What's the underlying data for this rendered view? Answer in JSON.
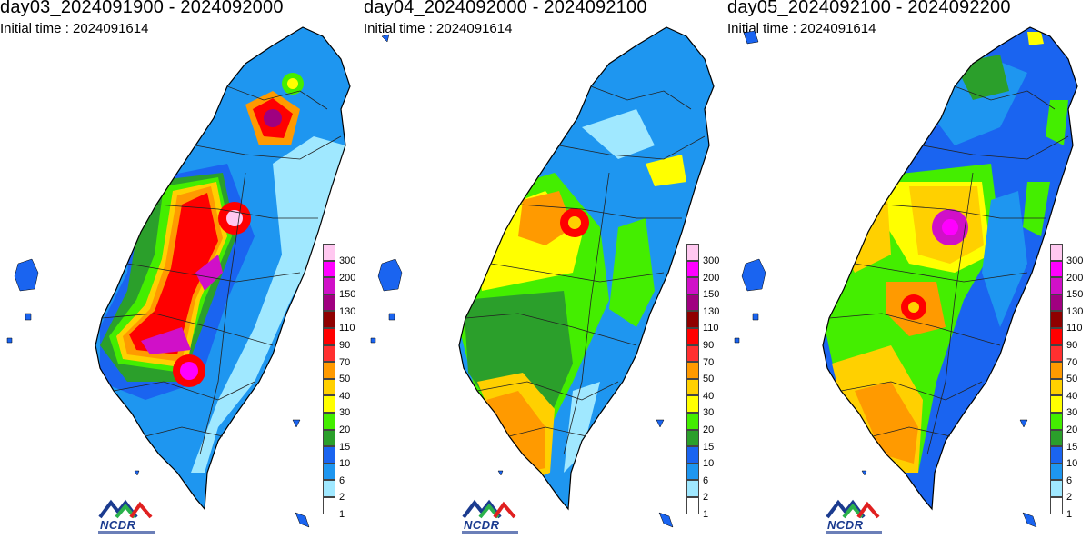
{
  "panels": [
    {
      "title": "day03_2024091900 - 2024092000",
      "subtitle": "Initial time : 2024091614"
    },
    {
      "title": "day04_2024092000 - 2024092100",
      "subtitle": "Initial time : 2024091614"
    },
    {
      "title": "day05_2024092100 - 2024092200",
      "subtitle": "Initial time : 2024091614"
    }
  ],
  "legend": {
    "levels": [
      "300",
      "200",
      "150",
      "130",
      "110",
      "90",
      "70",
      "50",
      "40",
      "30",
      "20",
      "15",
      "10",
      "6",
      "2",
      "1"
    ],
    "colors": [
      "#ffc8f0",
      "#ff00ff",
      "#d010c8",
      "#a00080",
      "#900000",
      "#ff0000",
      "#ff3030",
      "#ff9a00",
      "#ffd000",
      "#ffff00",
      "#44ee00",
      "#2b9f2b",
      "#1a64f0",
      "#1e96f0",
      "#a0e8ff",
      "#ffffff"
    ]
  },
  "logo": {
    "text": "NCDR"
  }
}
